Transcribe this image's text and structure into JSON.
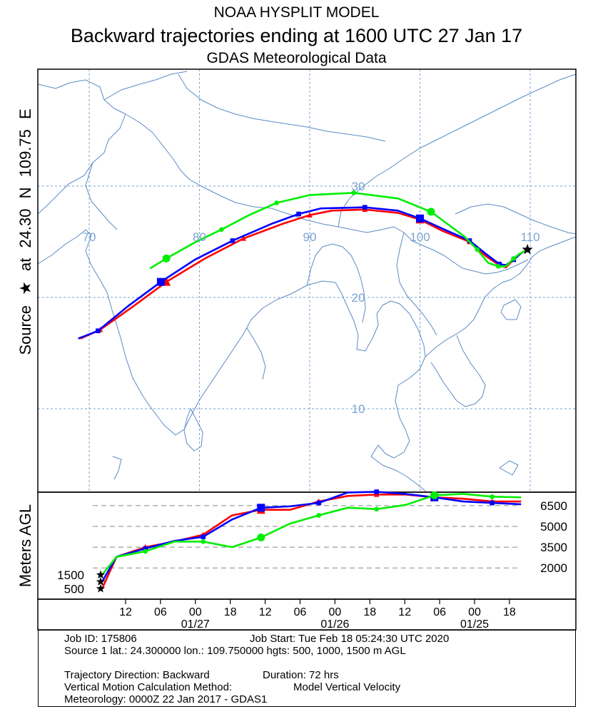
{
  "header": {
    "line1": "NOAA HYSPLIT MODEL",
    "line2": "Backward trajectories ending at 1600 UTC 27 Jan 17",
    "line3": "GDAS Meteorological Data"
  },
  "source_label": "Source ★ at 24.30 N 109.75 E",
  "chart_data": [
    {
      "type": "line",
      "title": "Backward trajectories ending at 1600 UTC 27 Jan 17",
      "grid": true,
      "lon_ticks": [
        70,
        80,
        90,
        100,
        110
      ],
      "lat_ticks": [
        10,
        20,
        30
      ],
      "source": {
        "lat": 24.3,
        "lon": 109.75
      },
      "series": [
        {
          "color": "#ff0000",
          "marker": "triangle",
          "points": [
            [
              109.75,
              24.3
            ],
            [
              109.2,
              24.0
            ],
            [
              108.5,
              23.4
            ],
            [
              107.8,
              22.7
            ],
            [
              107.2,
              22.9
            ],
            [
              106.0,
              23.7
            ],
            [
              104.5,
              25.0
            ],
            [
              102.0,
              26.0
            ],
            [
              100.0,
              27.0
            ],
            [
              98.0,
              27.6
            ],
            [
              95.0,
              27.9
            ],
            [
              92.0,
              27.8
            ],
            [
              90.0,
              27.4
            ],
            [
              87.5,
              26.6
            ],
            [
              84.0,
              25.3
            ],
            [
              80.5,
              23.5
            ],
            [
              77.0,
              21.4
            ],
            [
              74.0,
              19.2
            ],
            [
              71.0,
              17.1
            ],
            [
              69.2,
              16.3
            ]
          ]
        },
        {
          "color": "#0000ff",
          "marker": "square",
          "points": [
            [
              109.75,
              24.3
            ],
            [
              109.2,
              24.0
            ],
            [
              108.5,
              23.4
            ],
            [
              107.8,
              22.9
            ],
            [
              107.2,
              23.0
            ],
            [
              106.0,
              23.9
            ],
            [
              104.5,
              25.1
            ],
            [
              102.0,
              26.2
            ],
            [
              100.0,
              27.1
            ],
            [
              98.0,
              27.8
            ],
            [
              95.0,
              28.1
            ],
            [
              91.0,
              28.0
            ],
            [
              89.0,
              27.5
            ],
            [
              86.5,
              26.6
            ],
            [
              83.0,
              25.1
            ],
            [
              79.6,
              23.4
            ],
            [
              76.5,
              21.4
            ],
            [
              73.5,
              19.2
            ],
            [
              70.8,
              17.0
            ],
            [
              69.0,
              16.3
            ]
          ]
        },
        {
          "color": "#00ee00",
          "marker": "circle",
          "points": [
            [
              109.75,
              24.3
            ],
            [
              109.0,
              23.9
            ],
            [
              108.5,
              23.5
            ],
            [
              107.8,
              22.8
            ],
            [
              107.1,
              22.8
            ],
            [
              106.2,
              23.1
            ],
            [
              105.2,
              24.3
            ],
            [
              104.0,
              25.5
            ],
            [
              101.0,
              27.7
            ],
            [
              98.0,
              28.9
            ],
            [
              94.0,
              29.4
            ],
            [
              90.0,
              29.2
            ],
            [
              87.0,
              28.5
            ],
            [
              84.5,
              27.4
            ],
            [
              82.0,
              26.1
            ],
            [
              79.5,
              24.9
            ],
            [
              77.0,
              23.5
            ],
            [
              75.5,
              22.6
            ]
          ]
        }
      ]
    },
    {
      "type": "line",
      "ylabel": "Meters AGL",
      "grid": true,
      "x_tick_labels": [
        "12",
        "06",
        "00",
        "18",
        "12",
        "06",
        "00",
        "18",
        "12",
        "06",
        "00",
        "18"
      ],
      "date_labels": [
        "01/27",
        "01/26",
        "01/25"
      ],
      "y_ticks": [
        2000,
        3500,
        5000,
        6500
      ],
      "source_heights": [
        500,
        1000,
        1500
      ],
      "source_heights_labeled": [
        1500,
        500
      ],
      "series": [
        {
          "color": "#ff0000",
          "marker": "triangle",
          "values": [
            [
              0,
              500
            ],
            [
              3,
              2800
            ],
            [
              9,
              3500
            ],
            [
              15,
              3900
            ],
            [
              21,
              4400
            ],
            [
              27,
              5800
            ],
            [
              33,
              6200
            ],
            [
              39,
              6200
            ],
            [
              45,
              6800
            ],
            [
              51,
              7200
            ],
            [
              57,
              7300
            ],
            [
              63,
              7300
            ],
            [
              69,
              7100
            ],
            [
              75,
              7000
            ],
            [
              81,
              6800
            ],
            [
              87,
              6800
            ]
          ]
        },
        {
          "color": "#0000ff",
          "marker": "square",
          "values": [
            [
              0,
              1000
            ],
            [
              3,
              2800
            ],
            [
              9,
              3400
            ],
            [
              15,
              3950
            ],
            [
              21,
              4250
            ],
            [
              27,
              5500
            ],
            [
              33,
              6350
            ],
            [
              39,
              6450
            ],
            [
              45,
              6700
            ],
            [
              51,
              7450
            ],
            [
              57,
              7500
            ],
            [
              63,
              7350
            ],
            [
              69,
              7100
            ],
            [
              75,
              6800
            ],
            [
              81,
              6700
            ],
            [
              87,
              6600
            ]
          ]
        },
        {
          "color": "#00ee00",
          "marker": "circle",
          "values": [
            [
              0,
              1500
            ],
            [
              3,
              2800
            ],
            [
              9,
              3200
            ],
            [
              15,
              3900
            ],
            [
              21,
              3900
            ],
            [
              27,
              3500
            ],
            [
              33,
              4200
            ],
            [
              39,
              5200
            ],
            [
              45,
              5800
            ],
            [
              51,
              6350
            ],
            [
              57,
              6250
            ],
            [
              63,
              6550
            ],
            [
              69,
              7250
            ],
            [
              75,
              7350
            ],
            [
              81,
              7150
            ],
            [
              87,
              7100
            ]
          ]
        }
      ]
    }
  ],
  "info": {
    "job_id": "Job ID: 175806",
    "job_start": "Job Start: Tue Feb 18 05:24:30 UTC 2020",
    "source_line": "Source 1 lat.: 24.300000  lon.: 109.750000  hgts: 500, 1000, 1500 m AGL",
    "direction": "Trajectory Direction: Backward",
    "duration": "Duration: 72 hrs",
    "vm_label": "Vertical Motion Calculation Method:",
    "vm_value": "Model Vertical Velocity",
    "meteorology": "Meteorology: 0000Z 22 Jan 2017 - GDAS1"
  },
  "colors": {
    "coast": "#5b8ac4",
    "grid": "#7aa3d3",
    "alt_grid": "#888888"
  }
}
